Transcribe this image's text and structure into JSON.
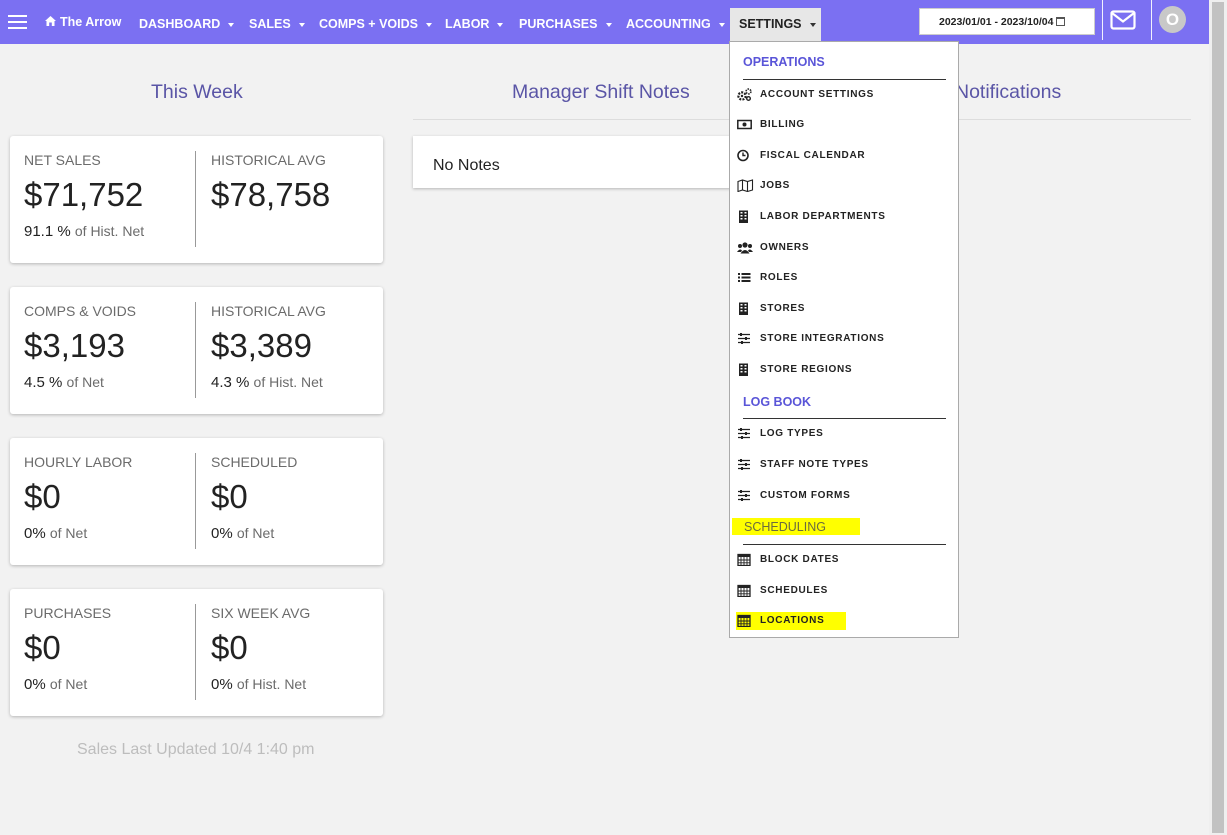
{
  "nav": {
    "brand": "The Arrow",
    "items": [
      "DASHBOARD",
      "SALES",
      "COMPS + VOIDS",
      "LABOR",
      "PURCHASES",
      "ACCOUNTING"
    ],
    "settings_label": "SETTINGS",
    "date_range": "2023/01/01 - 2023/10/04",
    "avatar_initial": "O",
    "accent_color": "#7b70f2"
  },
  "headings": {
    "this_week": "This Week",
    "manager_notes": "Manager Shift Notes",
    "notifications": "Notifications"
  },
  "cards": [
    {
      "left": {
        "label": "NET SALES",
        "value": "$71,752",
        "sub_num": "91.1 %",
        "sub_suffix": "of Hist. Net"
      },
      "right": {
        "label": "HISTORICAL AVG",
        "value": "$78,758",
        "sub_num": "",
        "sub_suffix": ""
      }
    },
    {
      "left": {
        "label": "COMPS & VOIDS",
        "value": "$3,193",
        "sub_num": "4.5 %",
        "sub_suffix": "of Net"
      },
      "right": {
        "label": "HISTORICAL AVG",
        "value": "$3,389",
        "sub_num": "4.3 %",
        "sub_suffix": "of Hist. Net"
      }
    },
    {
      "left": {
        "label": "HOURLY LABOR",
        "value": "$0",
        "sub_num": "0%",
        "sub_suffix": "of Net"
      },
      "right": {
        "label": "SCHEDULED",
        "value": "$0",
        "sub_num": "0%",
        "sub_suffix": "of Net"
      }
    },
    {
      "left": {
        "label": "PURCHASES",
        "value": "$0",
        "sub_num": "0%",
        "sub_suffix": "of Net"
      },
      "right": {
        "label": "SIX WEEK AVG",
        "value": "$0",
        "sub_num": "0%",
        "sub_suffix": "of Hist. Net"
      }
    }
  ],
  "sales_updated": "Sales Last Updated 10/4 1:40 pm",
  "notes": {
    "empty_text": "No Notes"
  },
  "settings_menu": {
    "operations": {
      "title": "OPERATIONS",
      "items": [
        "ACCOUNT SETTINGS",
        "BILLING",
        "FISCAL CALENDAR",
        "JOBS",
        "LABOR DEPARTMENTS",
        "OWNERS",
        "ROLES",
        "STORES",
        "STORE INTEGRATIONS",
        "STORE REGIONS"
      ]
    },
    "log_book": {
      "title": "LOG BOOK",
      "items": [
        "LOG TYPES",
        "STAFF NOTE TYPES",
        "CUSTOM FORMS"
      ]
    },
    "scheduling": {
      "title": "SCHEDULING",
      "items": [
        "BLOCK DATES",
        "SCHEDULES",
        "LOCATIONS"
      ]
    },
    "highlight_color": "#ffff00"
  }
}
